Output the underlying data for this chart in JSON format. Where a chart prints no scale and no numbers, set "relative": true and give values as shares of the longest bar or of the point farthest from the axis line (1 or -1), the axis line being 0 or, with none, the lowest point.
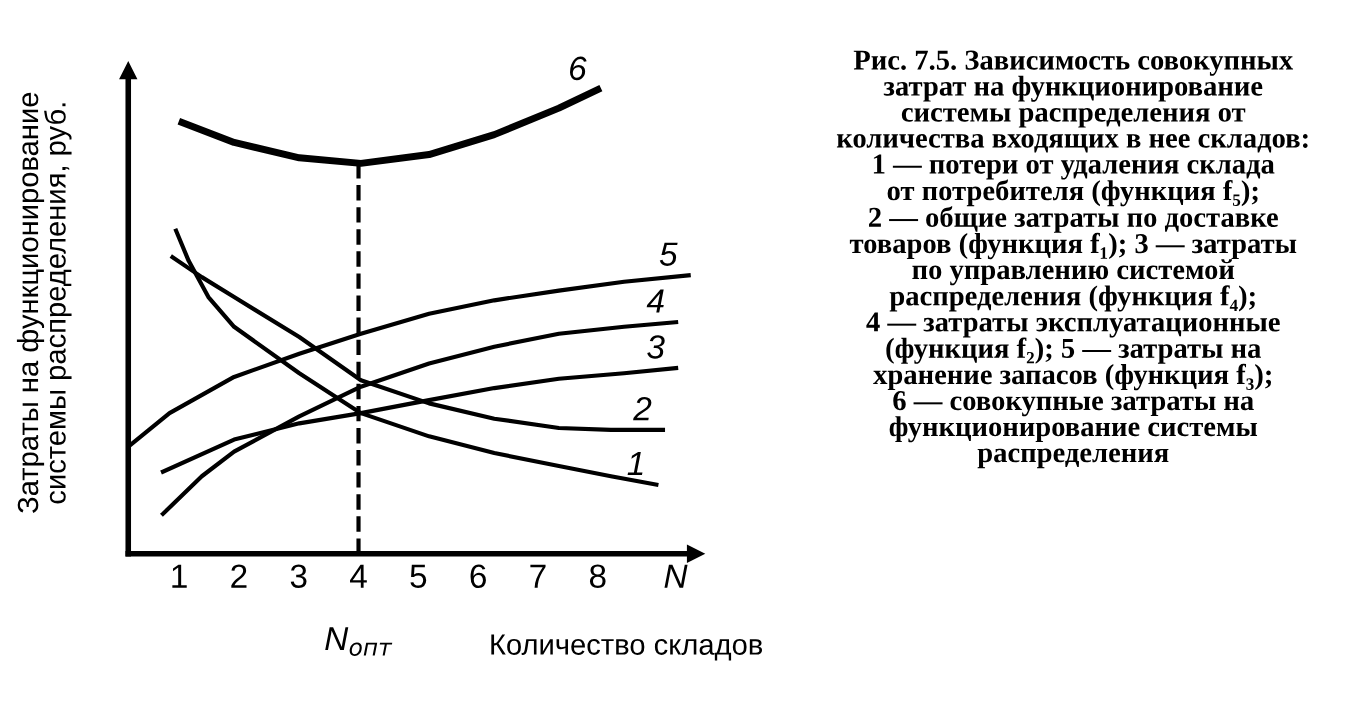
{
  "chart_data": {
    "type": "line",
    "relative": true,
    "title": "Рис. 7.5. Зависимость совокупных\nзатрат на функционирование\nсистемы распределения от\nколичества входящих в нее складов:\n1 — потери от удаления склада\nот потребителя (функция f₅);\n2 — общие затраты по доставке\nтоваров (функция f₁); 3 — затраты\nпо управлению системой\nраспределения (функция f₄);\n4 — затраты эксплуатационные\n(функция f₂); 5 — затраты на\nхранение запасов (функция f₃);\n6 — совокупные затраты на\nфункционирование системы\nраспределения",
    "xlabel": "Количество складов",
    "ylabel": "Затраты на функционирование\nсистемы распределения, руб.",
    "xlim": [
      0.15,
      9.63
    ],
    "xticks": [
      1,
      2,
      3,
      4,
      5,
      6,
      7,
      8,
      {
        "value": 9.3,
        "label": "N"
      }
    ],
    "tick_labels": "x",
    "grid": false,
    "legend": false,
    "marker": "none",
    "line_style": "solid",
    "color": "#000000",
    "annotations": [
      "N$_{опт}$"
    ],
    "ref_lines": [
      {
        "axis": "x",
        "value": 4,
        "line_style": "dashed",
        "label": null
      }
    ],
    "series": [
      {
        "name": "1",
        "x": [
          0.95,
          1.16,
          1.49,
          1.92,
          3.01,
          4.04,
          5.18,
          6.27,
          7.35,
          8.22,
          8.98
        ],
        "values": [
          0.696,
          0.631,
          0.553,
          0.489,
          0.389,
          0.303,
          0.253,
          0.217,
          0.189,
          0.167,
          0.149
        ]
      },
      {
        "name": "2",
        "x": [
          0.89,
          1.38,
          1.92,
          3.01,
          4.04,
          5.18,
          6.27,
          7.35,
          8.22,
          9.09
        ],
        "values": [
          0.639,
          0.596,
          0.553,
          0.467,
          0.374,
          0.324,
          0.291,
          0.271,
          0.267,
          0.267
        ]
      },
      {
        "name": "3",
        "x": [
          0.73,
          1.92,
          3.01,
          4.04,
          5.18,
          6.27,
          7.35,
          8.44,
          9.31
        ],
        "values": [
          0.177,
          0.246,
          0.281,
          0.303,
          0.331,
          0.357,
          0.377,
          0.389,
          0.4
        ]
      },
      {
        "name": "4",
        "x": [
          0.73,
          1.38,
          1.92,
          3.01,
          4.04,
          5.18,
          6.27,
          7.35,
          8.44,
          9.31
        ],
        "values": [
          0.086,
          0.167,
          0.22,
          0.296,
          0.36,
          0.41,
          0.446,
          0.474,
          0.489,
          0.499
        ]
      },
      {
        "name": "5",
        "x": [
          0.153,
          0.84,
          1.92,
          3.01,
          4.04,
          5.18,
          6.27,
          7.35,
          8.44,
          9.52
        ],
        "values": [
          0.231,
          0.303,
          0.381,
          0.431,
          0.474,
          0.517,
          0.546,
          0.567,
          0.586,
          0.6
        ]
      },
      {
        "name": "6",
        "x": [
          1.05,
          1.92,
          3.01,
          4.04,
          5.18,
          6.27,
          7.35,
          8.0
        ],
        "values": [
          0.929,
          0.886,
          0.853,
          0.841,
          0.86,
          0.903,
          0.96,
          1.0
        ]
      }
    ]
  }
}
